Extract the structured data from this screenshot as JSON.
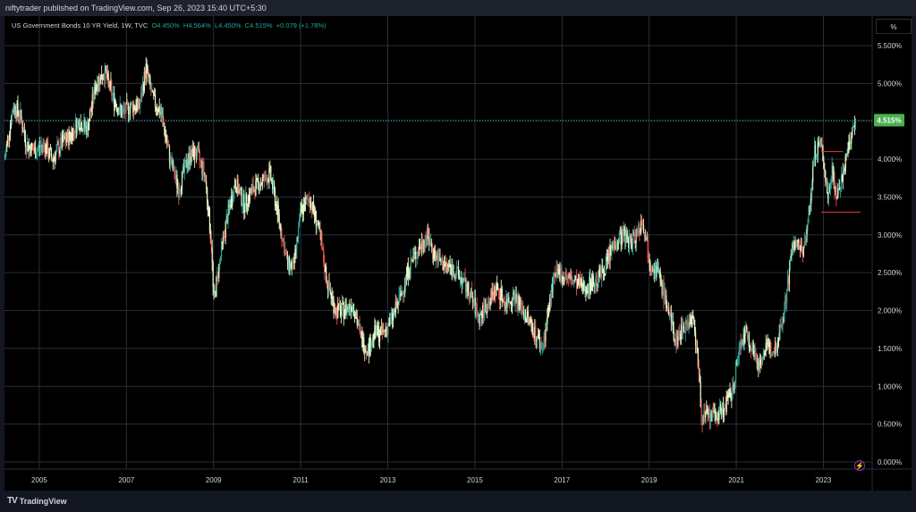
{
  "header": {
    "publish_text": "niftytrader published on TradingView.com, Sep 26, 2023 15:40 UTC+5:30"
  },
  "legend": {
    "symbol": "US Government Bonds 10 YR Yield, 1W, TVC",
    "open": "O4.450%",
    "high": "H4.564%",
    "low": "L4.450%",
    "close": "C4.515%",
    "change": "+0.079 (+1.78%)"
  },
  "scale_button": {
    "label": "%"
  },
  "footer": {
    "brand": "TradingView"
  },
  "colors": {
    "up": "#26a69a",
    "down": "#ef5350",
    "candle_light": "#e8f5c8",
    "price_label": "#4caf50",
    "level_line": "#f23645"
  },
  "chart_data": {
    "type": "line",
    "title": "US Government Bonds 10 YR Yield, 1W, TVC",
    "xlabel": "",
    "ylabel": "",
    "x_ticks": [
      "2005",
      "2007",
      "2009",
      "2011",
      "2013",
      "2015",
      "2017",
      "2019",
      "2021",
      "2023"
    ],
    "y_ticks": [
      "0.000%",
      "0.500%",
      "1.000%",
      "1.500%",
      "2.000%",
      "2.500%",
      "3.000%",
      "3.500%",
      "4.000%",
      "4.500%",
      "5.000%",
      "5.500%"
    ],
    "ylim": [
      0,
      5.7
    ],
    "xlim": [
      2004.2,
      2023.75
    ],
    "grid": true,
    "last_price_label": "4.515%",
    "last_price": 4.515,
    "series": [
      {
        "x": [
          2004.2,
          2004.4,
          2004.55,
          2004.7,
          2004.9,
          2005.1,
          2005.3,
          2005.5,
          2005.7,
          2005.9,
          2006.1,
          2006.3,
          2006.5,
          2006.7,
          2006.9,
          2007.1,
          2007.3,
          2007.45,
          2007.6,
          2007.8,
          2008.0,
          2008.2,
          2008.4,
          2008.6,
          2008.8,
          2008.95,
          2009.0,
          2009.1,
          2009.3,
          2009.5,
          2009.7,
          2009.9,
          2010.1,
          2010.3,
          2010.5,
          2010.7,
          2010.85,
          2011.0,
          2011.2,
          2011.4,
          2011.6,
          2011.8,
          2012.0,
          2012.2,
          2012.4,
          2012.55,
          2012.7,
          2012.9,
          2013.1,
          2013.3,
          2013.5,
          2013.7,
          2013.9,
          2014.1,
          2014.3,
          2014.5,
          2014.7,
          2014.9,
          2015.1,
          2015.3,
          2015.5,
          2015.7,
          2015.9,
          2016.1,
          2016.3,
          2016.55,
          2016.8,
          2016.95,
          2017.2,
          2017.5,
          2017.8,
          2018.0,
          2018.2,
          2018.4,
          2018.6,
          2018.85,
          2019.0,
          2019.2,
          2019.4,
          2019.6,
          2019.8,
          2020.0,
          2020.1,
          2020.2,
          2020.35,
          2020.5,
          2020.7,
          2020.9,
          2021.1,
          2021.25,
          2021.5,
          2021.7,
          2021.9,
          2022.1,
          2022.3,
          2022.5,
          2022.6,
          2022.8,
          2022.95,
          2023.1,
          2023.2,
          2023.3,
          2023.45,
          2023.6,
          2023.75
        ],
        "values": [
          4.0,
          4.7,
          4.6,
          4.2,
          4.1,
          4.2,
          4.0,
          4.2,
          4.3,
          4.5,
          4.4,
          5.0,
          5.15,
          4.8,
          4.6,
          4.7,
          4.7,
          5.2,
          4.8,
          4.6,
          4.0,
          3.6,
          4.0,
          4.1,
          3.8,
          2.9,
          2.1,
          2.5,
          3.2,
          3.7,
          3.4,
          3.6,
          3.7,
          3.8,
          3.2,
          2.6,
          2.6,
          3.3,
          3.5,
          3.1,
          2.4,
          2.0,
          2.0,
          2.1,
          1.6,
          1.5,
          1.7,
          1.7,
          1.9,
          2.2,
          2.6,
          2.8,
          3.0,
          2.7,
          2.6,
          2.55,
          2.4,
          2.2,
          1.9,
          2.1,
          2.3,
          2.1,
          2.2,
          2.0,
          1.8,
          1.5,
          2.4,
          2.5,
          2.4,
          2.3,
          2.4,
          2.6,
          2.9,
          3.0,
          2.9,
          3.2,
          2.7,
          2.5,
          2.1,
          1.6,
          1.8,
          1.9,
          1.5,
          0.6,
          0.6,
          0.6,
          0.7,
          0.9,
          1.6,
          1.7,
          1.3,
          1.5,
          1.5,
          2.0,
          2.9,
          2.8,
          2.9,
          4.1,
          4.2,
          3.5,
          3.9,
          3.5,
          3.8,
          4.2,
          4.515
        ]
      }
    ],
    "levels": [
      {
        "value": 4.1,
        "from": 2022.95,
        "to": 2023.45
      },
      {
        "value": 3.3,
        "from": 2022.95,
        "to": 2023.85
      }
    ]
  }
}
